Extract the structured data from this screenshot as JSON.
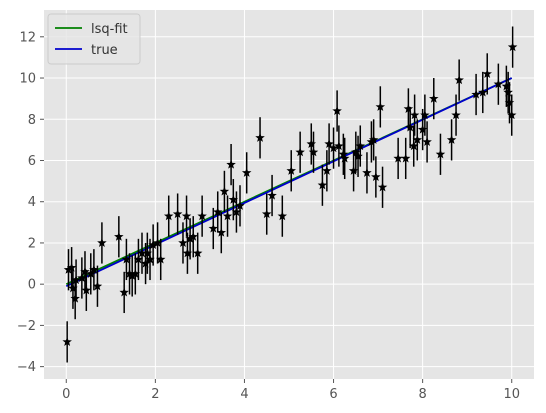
{
  "chart_data": {
    "type": "scatter",
    "title": "",
    "xlabel": "",
    "ylabel": "",
    "xlim": [
      -0.5,
      10.5
    ],
    "ylim": [
      -4.6,
      13.3
    ],
    "xticks": [
      0,
      2,
      4,
      6,
      8,
      10
    ],
    "yticks": [
      -4,
      -2,
      0,
      2,
      4,
      6,
      8,
      10,
      12
    ],
    "grid": true,
    "legend_position": "top-left",
    "colors": {
      "background": "#e5e5e5",
      "grid": "#ffffff",
      "points": "#000000",
      "fit": "#008000",
      "true": "#0000cc",
      "tick_label": "#555555"
    },
    "series": [
      {
        "name": "lsq-fit",
        "kind": "line",
        "x": [
          0.0,
          10.0
        ],
        "y": [
          0.0,
          10.0
        ]
      },
      {
        "name": "true",
        "kind": "line",
        "x": [
          0.0,
          10.0
        ],
        "y": [
          -0.1,
          10.0
        ]
      },
      {
        "kind": "errorbar",
        "marker": "star",
        "error": 1.0,
        "x": [
          0.02,
          0.05,
          0.12,
          0.15,
          0.2,
          0.22,
          0.35,
          0.42,
          0.45,
          0.55,
          0.62,
          0.7,
          0.8,
          1.18,
          1.3,
          1.35,
          1.42,
          1.48,
          1.55,
          1.62,
          1.7,
          1.78,
          1.82,
          1.88,
          1.95,
          2.05,
          2.12,
          2.3,
          2.5,
          2.62,
          2.7,
          2.72,
          2.78,
          2.85,
          2.95,
          3.05,
          3.3,
          3.4,
          3.48,
          3.55,
          3.62,
          3.7,
          3.75,
          3.82,
          3.9,
          4.05,
          4.35,
          4.5,
          4.62,
          4.85,
          5.05,
          5.25,
          5.5,
          5.55,
          5.75,
          5.85,
          5.9,
          6.0,
          6.08,
          6.12,
          6.22,
          6.25,
          6.45,
          6.5,
          6.55,
          6.6,
          6.75,
          6.85,
          6.9,
          6.95,
          7.05,
          7.1,
          7.45,
          7.62,
          7.68,
          7.72,
          7.8,
          7.82,
          7.88,
          8.0,
          8.05,
          8.1,
          8.25,
          8.4,
          8.65,
          8.75,
          8.82,
          9.2,
          9.35,
          9.45,
          9.7,
          9.88,
          9.92,
          9.95,
          10.0,
          10.02
        ],
        "y": [
          -2.8,
          0.7,
          0.8,
          -0.2,
          -0.7,
          0.2,
          0.3,
          0.6,
          -0.3,
          0.5,
          0.7,
          -0.1,
          2.0,
          2.3,
          -0.4,
          1.2,
          0.5,
          0.4,
          0.5,
          1.2,
          1.5,
          1.0,
          1.5,
          1.2,
          1.9,
          2.0,
          1.2,
          3.3,
          3.4,
          2.0,
          3.3,
          1.5,
          2.2,
          2.3,
          1.5,
          3.3,
          2.7,
          3.5,
          2.5,
          4.5,
          3.3,
          5.8,
          4.1,
          3.5,
          3.8,
          5.4,
          7.1,
          3.4,
          4.3,
          3.3,
          5.5,
          6.4,
          6.8,
          6.4,
          4.8,
          5.5,
          6.8,
          6.6,
          8.4,
          6.7,
          6.3,
          6.1,
          5.5,
          6.4,
          6.2,
          6.7,
          5.4,
          6.9,
          7.0,
          5.2,
          8.6,
          4.7,
          6.1,
          6.1,
          8.5,
          7.6,
          6.7,
          8.2,
          7.0,
          7.5,
          8.2,
          6.9,
          9.0,
          6.3,
          7.0,
          8.2,
          9.9,
          9.2,
          9.3,
          10.2,
          9.7,
          9.6,
          9.3,
          8.8,
          8.2,
          11.5
        ]
      }
    ]
  }
}
